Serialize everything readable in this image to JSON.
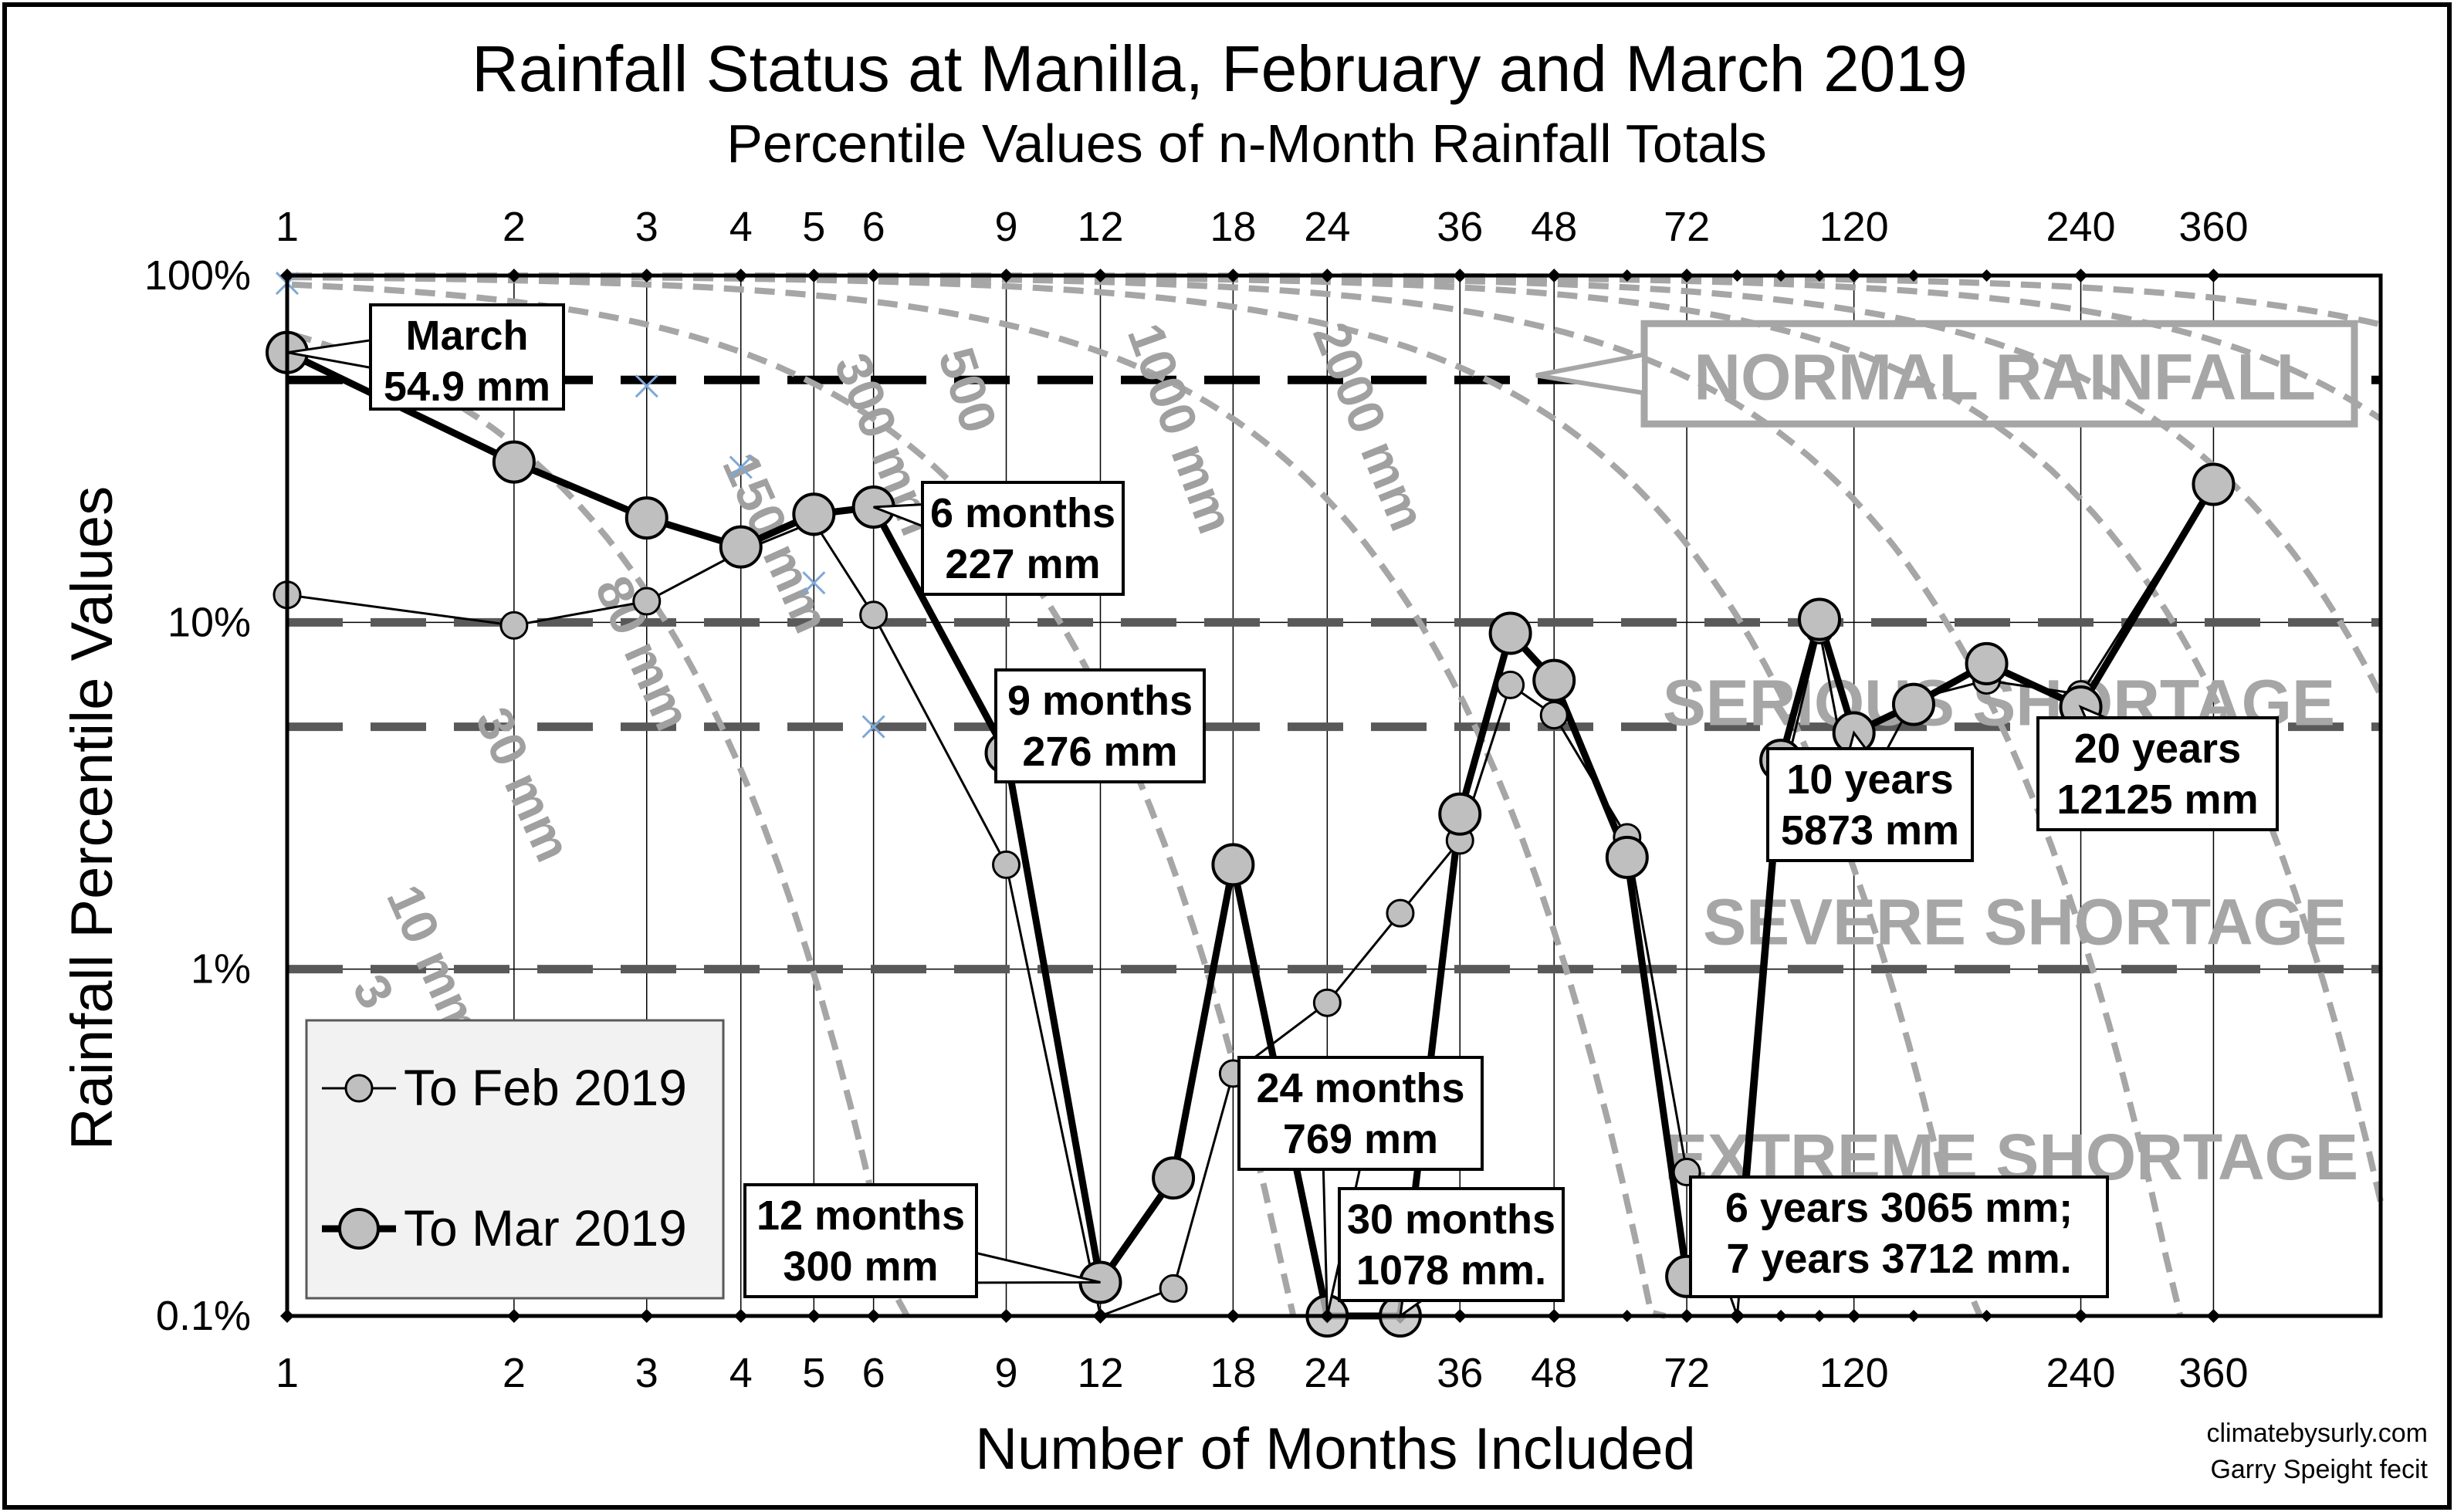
{
  "chart_data": {
    "type": "line",
    "title": "Rainfall Status at Manilla, February and March 2019",
    "subtitle": "Percentile Values of n-Month Rainfall Totals",
    "xlabel": "Number of Months Included",
    "ylabel": "Rainfall Percentile Values",
    "x_scale": "log",
    "y_scale": "log",
    "xlim": [
      1,
      600
    ],
    "ylim": [
      0.1,
      100
    ],
    "x_tick_labels": [
      "1",
      "2",
      "3",
      "4",
      "5",
      "6",
      "9",
      "12",
      "18",
      "24",
      "36",
      "48",
      "72",
      "120",
      "240",
      "360"
    ],
    "x_ticks": [
      1,
      2,
      3,
      4,
      5,
      6,
      9,
      12,
      18,
      24,
      36,
      48,
      72,
      120,
      240,
      360
    ],
    "y_ticks": [
      0.1,
      1,
      10,
      100
    ],
    "y_tick_labels": [
      "0.1%",
      "1%",
      "10%",
      "100%"
    ],
    "grid": true,
    "legend_position": "bottom-left",
    "series": [
      {
        "name": "To Feb 2019",
        "x": [
          1,
          2,
          3,
          4,
          5,
          6,
          9,
          12,
          15,
          18,
          24,
          30,
          36,
          42,
          48,
          60,
          72,
          84,
          96,
          108,
          120,
          144,
          180,
          240,
          360
        ],
        "y": [
          12,
          9.8,
          11.5,
          16,
          19.5,
          10.5,
          2,
          0.1,
          0.12,
          0.5,
          0.8,
          1.45,
          2.35,
          6.6,
          5.4,
          2.4,
          0.26,
          0.1,
          3.3,
          9.5,
          2.85,
          6,
          6.8,
          6.2,
          25
        ]
      },
      {
        "name": "To Mar 2019",
        "x": [
          1,
          2,
          3,
          4,
          5,
          6,
          9,
          12,
          15,
          18,
          24,
          30,
          36,
          42,
          48,
          60,
          72,
          84,
          96,
          108,
          120,
          144,
          180,
          240,
          360
        ],
        "y": [
          60,
          29,
          20,
          16.5,
          20.5,
          21.5,
          4.2,
          0.125,
          0.25,
          2,
          0.1,
          0.1,
          2.8,
          9.3,
          6.8,
          2.1,
          0.13,
          0.13,
          4,
          10.2,
          4.8,
          5.8,
          7.6,
          5.7,
          25
        ]
      }
    ],
    "thresholds": [
      {
        "label": "NORMAL RAINFALL",
        "y": 50
      },
      {
        "label": "SERIOUS SHORTAGE",
        "y": 10
      },
      {
        "label": "SEVERE SHORTAGE",
        "y": 5
      },
      {
        "label": "EXTREME SHORTAGE",
        "y": 1
      }
    ],
    "iso_rainfall_lines": [
      "3",
      "10 mm",
      "30 mm",
      "80 mm",
      "150 mm",
      "300 mm",
      "500",
      "1000 mm",
      "2000 mm"
    ],
    "callouts": [
      {
        "lines": [
          "March",
          "54.9 mm"
        ],
        "x": 1,
        "y": 60
      },
      {
        "lines": [
          "6 months",
          "227 mm"
        ],
        "x": 6,
        "y": 21.5
      },
      {
        "lines": [
          "9 months",
          "276 mm"
        ],
        "x": 9,
        "y": 4.2
      },
      {
        "lines": [
          "12 months",
          "300 mm"
        ],
        "x": 12,
        "y": 0.125
      },
      {
        "lines": [
          "24 months",
          "769 mm"
        ],
        "x": 24,
        "y": 0.1
      },
      {
        "lines": [
          "30 months",
          "1078 mm."
        ],
        "x": 30,
        "y": 0.1
      },
      {
        "lines": [
          "6 years 3065 mm;",
          "7 years 3712 mm."
        ],
        "x": 84,
        "y": 0.13
      },
      {
        "lines": [
          "10 years",
          "5873 mm"
        ],
        "x": 120,
        "y": 4.8
      },
      {
        "lines": [
          "20 years",
          "12125 mm"
        ],
        "x": 240,
        "y": 5.7
      }
    ]
  },
  "credits": [
    "climatebysurly.com",
    "Garry Speight fecit"
  ]
}
